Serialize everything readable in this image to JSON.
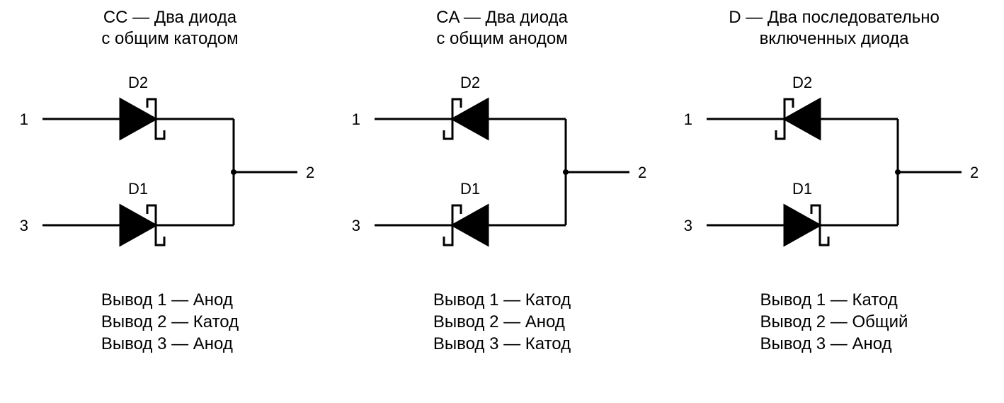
{
  "colors": {
    "stroke": "#000000",
    "fill": "#000000",
    "bg": "#ffffff"
  },
  "stroke_width": 3,
  "node_radius": 4,
  "font": {
    "title_size": 24,
    "pin_size": 24,
    "ref_size": 22,
    "term_size": 22
  },
  "panels": [
    {
      "id": "cc",
      "title": "CC — Два диода\nс общим катодом",
      "d2_label": "D2",
      "d1_label": "D1",
      "term1": "1",
      "term2": "2",
      "term3": "3",
      "d2_direction": "right",
      "d1_direction": "right",
      "pin1": "Вывод 1 — Анод",
      "pin2": "Вывод 2 — Катод",
      "pin3": "Вывод 3 — Анод"
    },
    {
      "id": "ca",
      "title": "CA — Два диода\nс общим анодом",
      "d2_label": "D2",
      "d1_label": "D1",
      "term1": "1",
      "term2": "2",
      "term3": "3",
      "d2_direction": "left",
      "d1_direction": "left",
      "pin1": "Вывод 1 — Катод",
      "pin2": "Вывод 2 — Анод",
      "pin3": "Вывод 3 — Катод"
    },
    {
      "id": "d",
      "title": "D — Два последовательно\nвключенных диода",
      "d2_label": "D2",
      "d1_label": "D1",
      "term1": "1",
      "term2": "2",
      "term3": "3",
      "d2_direction": "left",
      "d1_direction": "right",
      "pin1": "Вывод 1 — Катод",
      "pin2": "Вывод 2 — Общий",
      "pin3": "Вывод 3 — Анод"
    }
  ]
}
